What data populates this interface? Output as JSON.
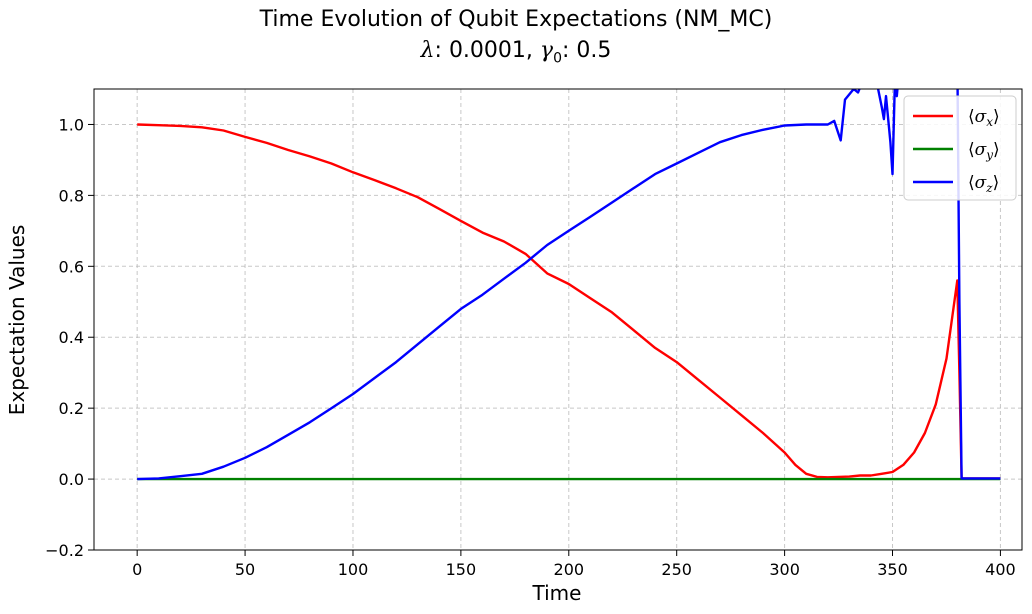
{
  "chart_data": {
    "type": "line",
    "title": "Time Evolution of Qubit Expectations (NM_MC)",
    "subtitle": {
      "lambda_symbol": "λ",
      "lambda_value": "0.0001",
      "gamma_symbol": "γ",
      "gamma_subscript": "0",
      "gamma_value": "0.5"
    },
    "xlabel": "Time",
    "ylabel": "Expectation Values",
    "xlim": [
      -20,
      410
    ],
    "ylim": [
      -0.2,
      1.1
    ],
    "xticks": [
      0,
      50,
      100,
      150,
      200,
      250,
      300,
      350,
      400
    ],
    "xtick_labels": [
      "0",
      "50",
      "100",
      "150",
      "200",
      "250",
      "300",
      "350",
      "400"
    ],
    "yticks": [
      -0.2,
      0.0,
      0.2,
      0.4,
      0.6,
      0.8,
      1.0
    ],
    "ytick_labels": [
      "−0.2",
      "0.0",
      "0.2",
      "0.4",
      "0.6",
      "0.8",
      "1.0"
    ],
    "grid": true,
    "legend_position": "top-right",
    "series": [
      {
        "name": "⟨σx⟩",
        "legend_symbol": "σ",
        "legend_subscript": "x",
        "color": "#ff0000",
        "x": [
          0,
          10,
          20,
          30,
          40,
          50,
          60,
          70,
          80,
          90,
          100,
          110,
          120,
          130,
          140,
          150,
          160,
          170,
          180,
          190,
          200,
          210,
          220,
          230,
          240,
          250,
          260,
          270,
          280,
          290,
          300,
          305,
          310,
          315,
          320,
          330,
          335,
          340,
          345,
          350,
          355,
          360,
          365,
          370,
          375,
          380,
          381,
          382,
          390,
          400
        ],
        "y": [
          1.0,
          0.998,
          0.996,
          0.992,
          0.983,
          0.965,
          0.948,
          0.928,
          0.91,
          0.89,
          0.865,
          0.843,
          0.82,
          0.795,
          0.762,
          0.728,
          0.695,
          0.67,
          0.635,
          0.58,
          0.55,
          0.51,
          0.47,
          0.42,
          0.37,
          0.33,
          0.28,
          0.23,
          0.18,
          0.13,
          0.075,
          0.04,
          0.015,
          0.006,
          0.005,
          0.007,
          0.01,
          0.01,
          0.015,
          0.02,
          0.04,
          0.075,
          0.13,
          0.21,
          0.34,
          0.56,
          0.3,
          0.002,
          0.002,
          0.002
        ]
      },
      {
        "name": "⟨σy⟩",
        "legend_symbol": "σ",
        "legend_subscript": "y",
        "color": "#008000",
        "x": [
          0,
          400
        ],
        "y": [
          0.0,
          0.0
        ]
      },
      {
        "name": "⟨σz⟩",
        "legend_symbol": "σ",
        "legend_subscript": "z",
        "color": "#0000ff",
        "x": [
          0,
          10,
          20,
          30,
          40,
          50,
          60,
          70,
          80,
          90,
          100,
          110,
          120,
          130,
          140,
          150,
          160,
          170,
          180,
          190,
          200,
          210,
          220,
          230,
          240,
          250,
          260,
          270,
          280,
          290,
          300,
          310,
          320,
          323,
          326,
          328,
          332,
          334,
          336,
          340,
          345,
          346,
          347,
          349,
          350,
          351,
          352,
          353,
          380,
          381,
          382,
          390,
          400
        ],
        "y": [
          0.0,
          0.002,
          0.008,
          0.015,
          0.035,
          0.06,
          0.09,
          0.125,
          0.16,
          0.2,
          0.24,
          0.285,
          0.33,
          0.38,
          0.43,
          0.48,
          0.52,
          0.565,
          0.61,
          0.66,
          0.7,
          0.74,
          0.78,
          0.82,
          0.86,
          0.89,
          0.92,
          0.95,
          0.97,
          0.985,
          0.997,
          1.0,
          1.0,
          1.01,
          0.955,
          1.07,
          1.1,
          1.09,
          1.12,
          1.2,
          1.05,
          1.015,
          1.08,
          0.95,
          0.86,
          1.1,
          1.08,
          1.15,
          1.2,
          0.5,
          0.002,
          0.002,
          0.002
        ]
      }
    ]
  }
}
